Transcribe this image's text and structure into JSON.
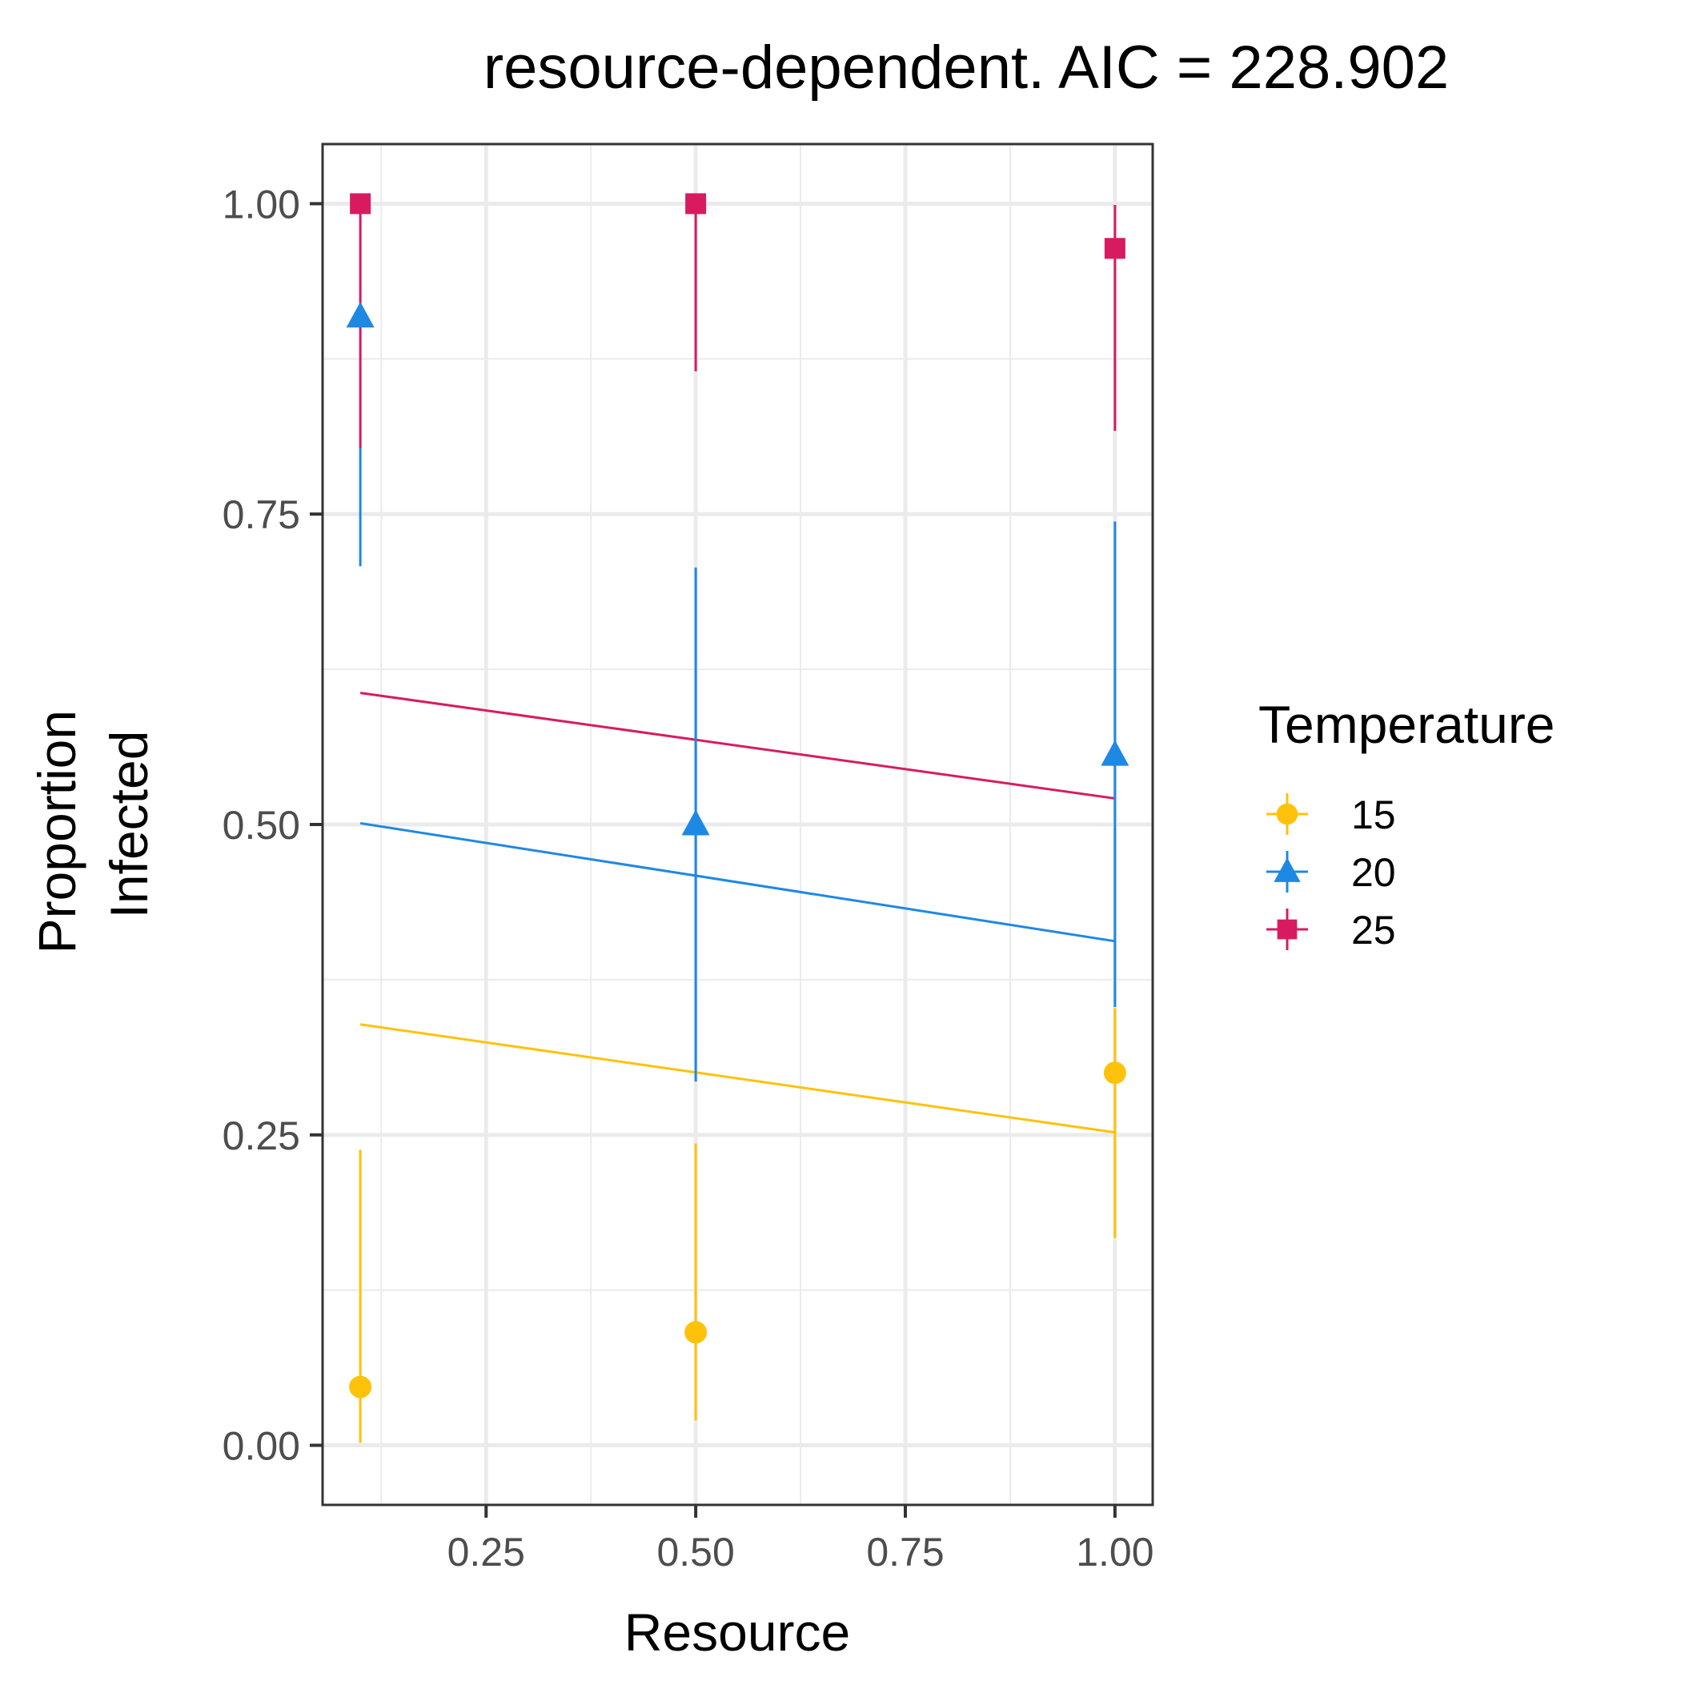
{
  "chart_data": {
    "type": "scatter",
    "title": "resource-dependent. AIC = 228.902",
    "xlabel": "Resource",
    "ylabel_lines": [
      "Proportion",
      "Infected"
    ],
    "xlim": [
      0.055,
      1.045
    ],
    "ylim": [
      -0.048,
      1.048
    ],
    "x_ticks": [
      0.25,
      0.5,
      0.75,
      1.0
    ],
    "x_tick_labels": [
      "0.25",
      "0.50",
      "0.75",
      "1.00"
    ],
    "y_ticks": [
      0.0,
      0.25,
      0.5,
      0.75,
      1.0
    ],
    "y_tick_labels": [
      "0.00",
      "0.25",
      "0.50",
      "0.75",
      "1.00"
    ],
    "grid": true,
    "legend": {
      "title": "Temperature",
      "placement": "right"
    },
    "series": [
      {
        "name": "15",
        "color": "#FFC20A",
        "marker": "circle",
        "points": [
          {
            "x": 0.1,
            "y": 0.047,
            "ymin": 0.002,
            "ymax": 0.238
          },
          {
            "x": 0.5,
            "y": 0.091,
            "ymin": 0.02,
            "ymax": 0.243
          },
          {
            "x": 1.0,
            "y": 0.3,
            "ymin": 0.167,
            "ymax": 0.352
          }
        ],
        "fit": [
          {
            "x": 0.1,
            "y": 0.339
          },
          {
            "x": 1.0,
            "y": 0.252
          }
        ]
      },
      {
        "name": "20",
        "color": "#1E88E5",
        "marker": "triangle",
        "points": [
          {
            "x": 0.1,
            "y": 0.909,
            "ymin": 0.708,
            "ymax": 0.803
          },
          {
            "x": 0.5,
            "y": 0.5,
            "ymin": 0.293,
            "ymax": 0.707
          },
          {
            "x": 1.0,
            "y": 0.556,
            "ymin": 0.353,
            "ymax": 0.744
          }
        ],
        "fit": [
          {
            "x": 0.1,
            "y": 0.501
          },
          {
            "x": 1.0,
            "y": 0.406
          }
        ]
      },
      {
        "name": "25",
        "color": "#D81B60",
        "marker": "square",
        "points": [
          {
            "x": 0.1,
            "y": 1.0,
            "ymin": 0.803,
            "ymax": 1.0
          },
          {
            "x": 0.5,
            "y": 1.0,
            "ymin": 0.865,
            "ymax": 1.0
          },
          {
            "x": 1.0,
            "y": 0.964,
            "ymin": 0.817,
            "ymax": 0.999
          }
        ],
        "fit": [
          {
            "x": 0.1,
            "y": 0.606
          },
          {
            "x": 1.0,
            "y": 0.521
          }
        ]
      }
    ]
  }
}
